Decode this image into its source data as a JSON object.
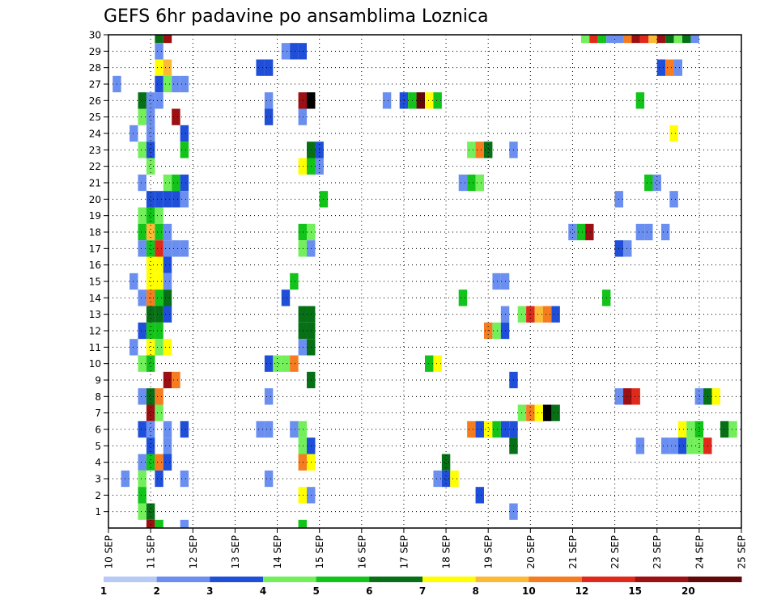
{
  "chart_data": {
    "type": "heatmap",
    "title": "GEFS 6hr padavine po ansamblima Loznica",
    "y_members": [
      1,
      2,
      3,
      4,
      5,
      6,
      7,
      8,
      9,
      10,
      11,
      12,
      13,
      14,
      15,
      16,
      17,
      18,
      19,
      20,
      21,
      22,
      23,
      24,
      25,
      26,
      27,
      28,
      29,
      30
    ],
    "x_labels": [
      "10 SEP",
      "11 SEP",
      "12 SEP",
      "13 SEP",
      "14 SEP",
      "15 SEP",
      "16 SEP",
      "17 SEP",
      "18 SEP",
      "19 SEP",
      "20 SEP",
      "21 SEP",
      "22 SEP",
      "23 SEP",
      "24 SEP",
      "25 SEP"
    ],
    "x_range_days": [
      10,
      25
    ],
    "grid": true,
    "colorbar": {
      "colors": [
        "#b7c9f5",
        "#6b8ff0",
        "#1f4fd8",
        "#72ef5a",
        "#12c31a",
        "#077016",
        "#ffff00",
        "#fbb936",
        "#f57c1f",
        "#e0291a",
        "#9c0f12",
        "#620808"
      ],
      "tick_labels": [
        "1",
        "2",
        "3",
        "4",
        "5",
        "6",
        "7",
        "8",
        "10",
        "12",
        "15",
        "20"
      ]
    },
    "cells": [
      [
        30,
        11.2,
        5
      ],
      [
        30,
        11.4,
        10
      ],
      [
        30,
        21.3,
        3
      ],
      [
        30,
        21.5,
        9
      ],
      [
        30,
        21.7,
        4
      ],
      [
        30,
        21.9,
        1
      ],
      [
        30,
        22.1,
        1
      ],
      [
        30,
        22.3,
        8
      ],
      [
        30,
        22.5,
        10
      ],
      [
        30,
        22.7,
        9
      ],
      [
        30,
        22.9,
        7
      ],
      [
        30,
        23.1,
        10
      ],
      [
        30,
        23.3,
        5
      ],
      [
        30,
        23.5,
        3
      ],
      [
        30,
        23.7,
        5
      ],
      [
        30,
        23.9,
        1
      ],
      [
        29,
        11.2,
        1
      ],
      [
        29,
        14.2,
        1
      ],
      [
        29,
        14.4,
        2
      ],
      [
        29,
        14.6,
        2
      ],
      [
        28,
        11.2,
        6
      ],
      [
        28,
        11.4,
        7
      ],
      [
        28,
        13.6,
        2
      ],
      [
        28,
        13.8,
        2
      ],
      [
        28,
        23.1,
        2
      ],
      [
        28,
        23.3,
        8
      ],
      [
        28,
        23.5,
        1
      ],
      [
        27,
        10.2,
        1
      ],
      [
        27,
        11.2,
        2
      ],
      [
        27,
        11.4,
        3
      ],
      [
        27,
        11.6,
        1
      ],
      [
        27,
        11.8,
        1
      ],
      [
        26,
        10.8,
        5
      ],
      [
        26,
        11.0,
        1
      ],
      [
        26,
        11.2,
        1
      ],
      [
        26,
        13.8,
        1
      ],
      [
        26,
        14.6,
        10
      ],
      [
        26,
        14.8,
        12
      ],
      [
        26,
        16.6,
        1
      ],
      [
        26,
        17.0,
        2
      ],
      [
        26,
        17.2,
        4
      ],
      [
        26,
        17.4,
        11
      ],
      [
        26,
        17.6,
        6
      ],
      [
        26,
        17.8,
        4
      ],
      [
        26,
        22.6,
        4
      ],
      [
        25,
        10.8,
        3
      ],
      [
        25,
        11.0,
        1
      ],
      [
        25,
        11.6,
        10
      ],
      [
        25,
        13.8,
        2
      ],
      [
        25,
        14.6,
        1
      ],
      [
        24,
        10.6,
        1
      ],
      [
        24,
        11.0,
        1
      ],
      [
        24,
        11.8,
        2
      ],
      [
        24,
        23.4,
        6
      ],
      [
        23,
        10.8,
        3
      ],
      [
        23,
        11.0,
        2
      ],
      [
        23,
        11.8,
        4
      ],
      [
        23,
        14.8,
        5
      ],
      [
        23,
        15.0,
        2
      ],
      [
        23,
        18.6,
        3
      ],
      [
        23,
        18.8,
        8
      ],
      [
        23,
        19.0,
        5
      ],
      [
        23,
        19.6,
        1
      ],
      [
        22,
        11.0,
        3
      ],
      [
        22,
        14.6,
        6
      ],
      [
        22,
        14.8,
        4
      ],
      [
        22,
        15.0,
        1
      ],
      [
        21,
        10.8,
        1
      ],
      [
        21,
        11.4,
        3
      ],
      [
        21,
        11.6,
        4
      ],
      [
        21,
        11.8,
        2
      ],
      [
        21,
        18.4,
        1
      ],
      [
        21,
        18.6,
        4
      ],
      [
        21,
        18.8,
        3
      ],
      [
        21,
        22.8,
        4
      ],
      [
        21,
        23.0,
        1
      ],
      [
        20,
        11.0,
        2
      ],
      [
        20,
        11.2,
        2
      ],
      [
        20,
        11.4,
        2
      ],
      [
        20,
        11.6,
        2
      ],
      [
        20,
        11.8,
        1
      ],
      [
        20,
        15.1,
        4
      ],
      [
        20,
        22.1,
        1
      ],
      [
        20,
        23.4,
        1
      ],
      [
        19,
        10.8,
        3
      ],
      [
        19,
        11.0,
        4
      ],
      [
        19,
        11.2,
        3
      ],
      [
        18,
        10.8,
        4
      ],
      [
        18,
        11.0,
        7
      ],
      [
        18,
        11.2,
        4
      ],
      [
        18,
        11.4,
        1
      ],
      [
        18,
        14.6,
        4
      ],
      [
        18,
        14.8,
        3
      ],
      [
        18,
        21.0,
        1
      ],
      [
        18,
        21.2,
        4
      ],
      [
        18,
        21.4,
        10
      ],
      [
        18,
        22.6,
        1
      ],
      [
        18,
        22.8,
        1
      ],
      [
        18,
        23.2,
        1
      ],
      [
        17,
        10.8,
        1
      ],
      [
        17,
        11.0,
        4
      ],
      [
        17,
        11.2,
        9
      ],
      [
        17,
        11.4,
        1
      ],
      [
        17,
        11.6,
        1
      ],
      [
        17,
        11.8,
        1
      ],
      [
        17,
        14.6,
        3
      ],
      [
        17,
        14.8,
        1
      ],
      [
        17,
        22.1,
        2
      ],
      [
        17,
        22.3,
        1
      ],
      [
        16,
        11.0,
        6
      ],
      [
        16,
        11.2,
        6
      ],
      [
        16,
        11.4,
        2
      ],
      [
        15,
        10.6,
        1
      ],
      [
        15,
        11.0,
        6
      ],
      [
        15,
        11.2,
        6
      ],
      [
        15,
        11.4,
        1
      ],
      [
        15,
        14.4,
        4
      ],
      [
        15,
        19.2,
        1
      ],
      [
        15,
        19.4,
        1
      ],
      [
        14,
        10.8,
        1
      ],
      [
        14,
        11.0,
        8
      ],
      [
        14,
        11.2,
        4
      ],
      [
        14,
        11.4,
        5
      ],
      [
        14,
        14.2,
        2
      ],
      [
        14,
        18.4,
        4
      ],
      [
        14,
        21.8,
        4
      ],
      [
        13,
        11.0,
        5
      ],
      [
        13,
        11.2,
        5
      ],
      [
        13,
        11.4,
        2
      ],
      [
        13,
        14.6,
        5
      ],
      [
        13,
        14.8,
        5
      ],
      [
        13,
        19.4,
        1
      ],
      [
        13,
        19.8,
        3
      ],
      [
        13,
        20.0,
        9
      ],
      [
        13,
        20.2,
        7
      ],
      [
        13,
        20.4,
        8
      ],
      [
        13,
        20.6,
        2
      ],
      [
        12,
        10.8,
        2
      ],
      [
        12,
        11.0,
        4
      ],
      [
        12,
        11.2,
        4
      ],
      [
        12,
        14.6,
        5
      ],
      [
        12,
        14.8,
        5
      ],
      [
        12,
        19.0,
        8
      ],
      [
        12,
        19.2,
        3
      ],
      [
        12,
        19.4,
        2
      ],
      [
        11,
        10.6,
        1
      ],
      [
        11,
        11.0,
        6
      ],
      [
        11,
        11.2,
        3
      ],
      [
        11,
        11.4,
        6
      ],
      [
        11,
        14.6,
        1
      ],
      [
        11,
        14.8,
        5
      ],
      [
        10,
        10.8,
        3
      ],
      [
        10,
        11.0,
        4
      ],
      [
        10,
        13.8,
        2
      ],
      [
        10,
        14.0,
        3
      ],
      [
        10,
        14.2,
        3
      ],
      [
        10,
        14.4,
        8
      ],
      [
        10,
        17.6,
        4
      ],
      [
        10,
        17.8,
        6
      ],
      [
        9,
        11.4,
        10
      ],
      [
        9,
        11.6,
        8
      ],
      [
        9,
        14.8,
        5
      ],
      [
        9,
        19.6,
        2
      ],
      [
        8,
        10.8,
        1
      ],
      [
        8,
        11.0,
        5
      ],
      [
        8,
        11.2,
        8
      ],
      [
        8,
        13.8,
        1
      ],
      [
        8,
        22.1,
        1
      ],
      [
        8,
        22.3,
        10
      ],
      [
        8,
        22.5,
        9
      ],
      [
        8,
        24.0,
        1
      ],
      [
        8,
        24.2,
        5
      ],
      [
        8,
        24.4,
        6
      ],
      [
        7,
        11.0,
        10
      ],
      [
        7,
        11.2,
        3
      ],
      [
        7,
        19.8,
        3
      ],
      [
        7,
        20.0,
        8
      ],
      [
        7,
        20.2,
        6
      ],
      [
        7,
        20.4,
        12
      ],
      [
        7,
        20.6,
        5
      ],
      [
        6,
        10.8,
        2
      ],
      [
        6,
        11.0,
        1
      ],
      [
        6,
        11.4,
        1
      ],
      [
        6,
        11.8,
        2
      ],
      [
        6,
        13.6,
        1
      ],
      [
        6,
        13.8,
        1
      ],
      [
        6,
        14.4,
        1
      ],
      [
        6,
        14.6,
        3
      ],
      [
        6,
        18.6,
        8
      ],
      [
        6,
        18.8,
        2
      ],
      [
        6,
        19.0,
        6
      ],
      [
        6,
        19.2,
        4
      ],
      [
        6,
        19.4,
        2
      ],
      [
        6,
        19.6,
        2
      ],
      [
        6,
        23.6,
        6
      ],
      [
        6,
        23.8,
        3
      ],
      [
        6,
        24.0,
        4
      ],
      [
        6,
        24.6,
        5
      ],
      [
        6,
        24.8,
        3
      ],
      [
        5,
        11.0,
        2
      ],
      [
        5,
        11.4,
        1
      ],
      [
        5,
        14.6,
        3
      ],
      [
        5,
        14.8,
        2
      ],
      [
        5,
        19.6,
        5
      ],
      [
        5,
        22.6,
        1
      ],
      [
        5,
        23.2,
        1
      ],
      [
        5,
        23.4,
        1
      ],
      [
        5,
        23.6,
        2
      ],
      [
        5,
        23.8,
        3
      ],
      [
        5,
        24.0,
        3
      ],
      [
        5,
        24.2,
        9
      ],
      [
        4,
        10.8,
        1
      ],
      [
        4,
        11.0,
        4
      ],
      [
        4,
        11.2,
        8
      ],
      [
        4,
        11.4,
        2
      ],
      [
        4,
        14.6,
        8
      ],
      [
        4,
        14.8,
        6
      ],
      [
        4,
        18.0,
        5
      ],
      [
        3,
        10.4,
        1
      ],
      [
        3,
        10.8,
        3
      ],
      [
        3,
        11.2,
        2
      ],
      [
        3,
        11.8,
        1
      ],
      [
        3,
        13.8,
        1
      ],
      [
        3,
        17.8,
        1
      ],
      [
        3,
        18.0,
        2
      ],
      [
        3,
        18.2,
        6
      ],
      [
        2,
        10.8,
        4
      ],
      [
        2,
        14.6,
        6
      ],
      [
        2,
        14.8,
        1
      ],
      [
        2,
        18.8,
        2
      ],
      [
        1,
        10.8,
        3
      ],
      [
        1,
        11.0,
        5
      ],
      [
        1,
        19.6,
        1
      ],
      [
        0,
        11.0,
        10
      ],
      [
        0,
        11.2,
        4
      ],
      [
        0,
        11.8,
        1
      ],
      [
        0,
        14.6,
        4
      ]
    ]
  }
}
